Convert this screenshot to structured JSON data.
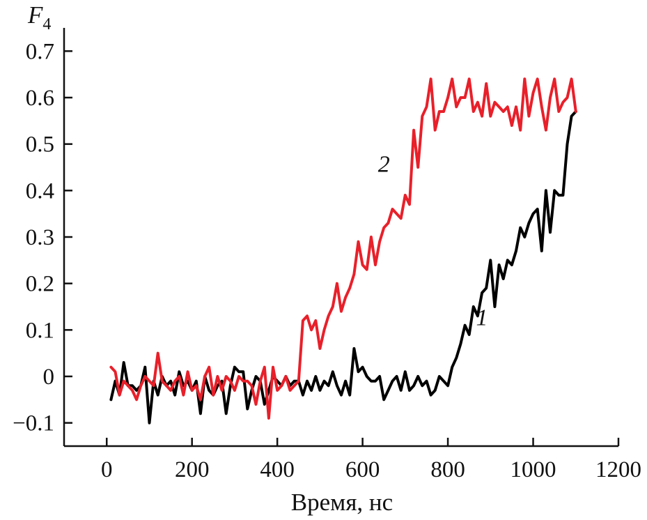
{
  "chart_data": {
    "type": "line",
    "ylabel": "F",
    "ylabel_sub": "4",
    "xlabel": "Время, нс",
    "xlim": [
      -100,
      1200
    ],
    "ylim": [
      -0.15,
      0.75
    ],
    "x_ticks": [
      0,
      200,
      400,
      600,
      800,
      1000,
      1200
    ],
    "x_tick_labels": [
      "0",
      "200",
      "400",
      "600",
      "800",
      "1000",
      "1200"
    ],
    "y_ticks": [
      -0.1,
      0,
      0.1,
      0.2,
      0.3,
      0.4,
      0.5,
      0.6,
      0.7
    ],
    "y_tick_labels": [
      "−0.1",
      "0",
      "0.1",
      "0.2",
      "0.3",
      "0.4",
      "0.5",
      "0.6",
      "0.7"
    ],
    "series": [
      {
        "name": "1",
        "color": "#000000",
        "label_at": [
          880,
          0.11
        ],
        "x": [
          10,
          20,
          30,
          40,
          50,
          60,
          70,
          80,
          90,
          100,
          110,
          120,
          130,
          140,
          150,
          160,
          170,
          180,
          190,
          200,
          210,
          220,
          230,
          240,
          250,
          260,
          270,
          280,
          290,
          300,
          310,
          320,
          330,
          340,
          350,
          360,
          370,
          380,
          390,
          400,
          410,
          420,
          430,
          440,
          450,
          460,
          470,
          480,
          490,
          500,
          510,
          520,
          530,
          540,
          550,
          560,
          570,
          580,
          590,
          600,
          610,
          620,
          630,
          640,
          650,
          660,
          670,
          680,
          690,
          700,
          710,
          720,
          730,
          740,
          750,
          760,
          770,
          780,
          790,
          800,
          810,
          820,
          830,
          840,
          850,
          860,
          870,
          880,
          890,
          900,
          910,
          920,
          930,
          940,
          950,
          960,
          970,
          980,
          990,
          1000,
          1010,
          1020,
          1030,
          1040,
          1050,
          1060,
          1070,
          1080,
          1090,
          1100
        ],
        "y": [
          -0.05,
          -0.01,
          -0.04,
          0.03,
          -0.02,
          -0.02,
          -0.03,
          -0.02,
          0.02,
          -0.1,
          -0.01,
          -0.04,
          0.0,
          -0.02,
          -0.01,
          -0.04,
          0.01,
          -0.02,
          -0.01,
          -0.03,
          -0.01,
          -0.08,
          0.0,
          -0.03,
          -0.04,
          -0.02,
          -0.01,
          -0.08,
          -0.02,
          0.02,
          0.01,
          0.01,
          -0.07,
          -0.03,
          0.0,
          -0.01,
          -0.06,
          -0.03,
          0.0,
          -0.01,
          -0.02,
          0.0,
          -0.02,
          -0.01,
          -0.01,
          -0.04,
          -0.01,
          -0.03,
          0.0,
          -0.03,
          -0.01,
          -0.02,
          0.01,
          -0.02,
          -0.04,
          -0.01,
          -0.04,
          0.06,
          0.01,
          0.02,
          0.0,
          -0.01,
          -0.01,
          0.0,
          -0.05,
          -0.03,
          -0.01,
          0.0,
          -0.03,
          0.01,
          -0.03,
          -0.02,
          0.0,
          -0.02,
          -0.01,
          -0.04,
          -0.03,
          0.0,
          -0.01,
          -0.02,
          0.02,
          0.04,
          0.07,
          0.11,
          0.09,
          0.15,
          0.13,
          0.18,
          0.19,
          0.25,
          0.15,
          0.24,
          0.21,
          0.25,
          0.24,
          0.27,
          0.32,
          0.3,
          0.33,
          0.35,
          0.36,
          0.27,
          0.4,
          0.31,
          0.4,
          0.39,
          0.39,
          0.5,
          0.56,
          0.57
        ]
      },
      {
        "name": "2",
        "color": "#e8202a",
        "label_at": [
          650,
          0.44
        ],
        "x": [
          10,
          20,
          30,
          40,
          50,
          60,
          70,
          80,
          90,
          100,
          110,
          120,
          130,
          140,
          150,
          160,
          170,
          180,
          190,
          200,
          210,
          220,
          230,
          240,
          250,
          260,
          270,
          280,
          290,
          300,
          310,
          320,
          330,
          340,
          350,
          360,
          370,
          380,
          390,
          400,
          410,
          420,
          430,
          440,
          450,
          460,
          470,
          480,
          490,
          500,
          510,
          520,
          530,
          540,
          550,
          560,
          570,
          580,
          590,
          600,
          610,
          620,
          630,
          640,
          650,
          660,
          670,
          680,
          690,
          700,
          710,
          720,
          730,
          740,
          750,
          760,
          770,
          780,
          790,
          800,
          810,
          820,
          830,
          840,
          850,
          860,
          870,
          880,
          890,
          900,
          910,
          920,
          930,
          940,
          950,
          960,
          970,
          980,
          990,
          1000,
          1010,
          1020,
          1030,
          1040,
          1050,
          1060,
          1070,
          1080,
          1090,
          1100
        ],
        "y": [
          0.02,
          0.01,
          -0.04,
          -0.01,
          -0.02,
          -0.03,
          -0.05,
          -0.02,
          0.0,
          -0.01,
          -0.02,
          0.05,
          -0.01,
          -0.02,
          -0.03,
          -0.01,
          0.0,
          -0.04,
          0.01,
          -0.03,
          -0.02,
          -0.05,
          0.0,
          0.02,
          -0.04,
          0.0,
          -0.03,
          0.0,
          -0.01,
          -0.03,
          0.0,
          -0.01,
          -0.01,
          -0.02,
          -0.06,
          -0.01,
          0.02,
          -0.09,
          0.02,
          -0.03,
          -0.02,
          0.0,
          -0.03,
          -0.02,
          -0.01,
          0.12,
          0.13,
          0.1,
          0.12,
          0.06,
          0.1,
          0.13,
          0.15,
          0.2,
          0.14,
          0.17,
          0.19,
          0.22,
          0.29,
          0.24,
          0.23,
          0.3,
          0.24,
          0.29,
          0.32,
          0.33,
          0.36,
          0.35,
          0.34,
          0.39,
          0.37,
          0.53,
          0.45,
          0.56,
          0.58,
          0.64,
          0.53,
          0.57,
          0.57,
          0.6,
          0.64,
          0.58,
          0.6,
          0.6,
          0.64,
          0.57,
          0.59,
          0.56,
          0.63,
          0.56,
          0.59,
          0.58,
          0.57,
          0.58,
          0.54,
          0.58,
          0.53,
          0.64,
          0.56,
          0.61,
          0.64,
          0.58,
          0.53,
          0.6,
          0.64,
          0.57,
          0.59,
          0.6,
          0.64,
          0.57
        ]
      }
    ]
  }
}
